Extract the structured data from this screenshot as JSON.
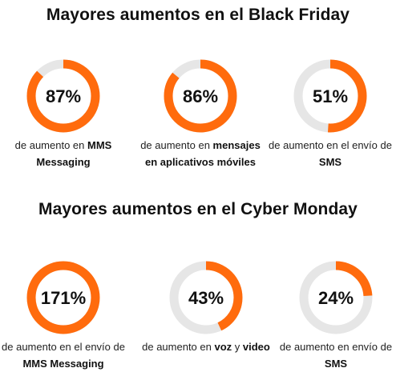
{
  "colors": {
    "accent": "#ff6b0d",
    "track": "#e6e6e6"
  },
  "chart_data": [
    {
      "type": "donut",
      "title": "Mayores aumentos en el Black Friday",
      "items": [
        {
          "value_label": "87%",
          "value": 87,
          "caption_parts": [
            "de aumento en ",
            "MMS Messaging"
          ]
        },
        {
          "value_label": "86%",
          "value": 86,
          "caption_parts": [
            "de aumento en ",
            "mensajes en aplicativos móviles"
          ]
        },
        {
          "value_label": "51%",
          "value": 51,
          "caption_parts": [
            "de aumento en el envío de ",
            "SMS"
          ]
        }
      ]
    },
    {
      "type": "donut",
      "title": "Mayores aumentos en el Cyber Monday",
      "items": [
        {
          "value_label": "171%",
          "value": 171,
          "caption_parts": [
            "de aumento en el envío de ",
            "MMS Messaging"
          ]
        },
        {
          "value_label": "43%",
          "value": 43,
          "caption_parts": [
            "de aumento en ",
            "voz",
            " y ",
            "video"
          ]
        },
        {
          "value_label": "24%",
          "value": 24,
          "caption_parts": [
            "de aumento en envío de ",
            "SMS"
          ]
        }
      ]
    }
  ]
}
